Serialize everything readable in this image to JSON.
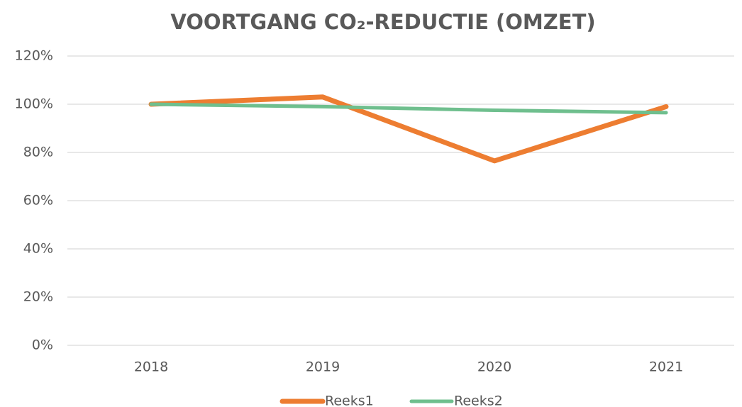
{
  "chart_data": {
    "type": "line",
    "title": "VOORTGANG CO₂-REDUCTIE (OMZET)",
    "categories": [
      "2018",
      "2019",
      "2020",
      "2021"
    ],
    "series": [
      {
        "name": "Reeks1",
        "color": "#ed7d31",
        "values": [
          100,
          103,
          76.5,
          99
        ]
      },
      {
        "name": "Reeks2",
        "color": "#6fbf8e",
        "values": [
          100,
          99,
          97.5,
          96.5
        ]
      }
    ],
    "ylim": [
      0,
      120
    ],
    "yticks": [
      {
        "value": 0,
        "label": "0%"
      },
      {
        "value": 20,
        "label": "20%"
      },
      {
        "value": 40,
        "label": "40%"
      },
      {
        "value": 60,
        "label": "60%"
      },
      {
        "value": 80,
        "label": "80%"
      },
      {
        "value": 100,
        "label": "100%"
      },
      {
        "value": 120,
        "label": "120%"
      }
    ],
    "grid": true,
    "legend": "bottom"
  }
}
